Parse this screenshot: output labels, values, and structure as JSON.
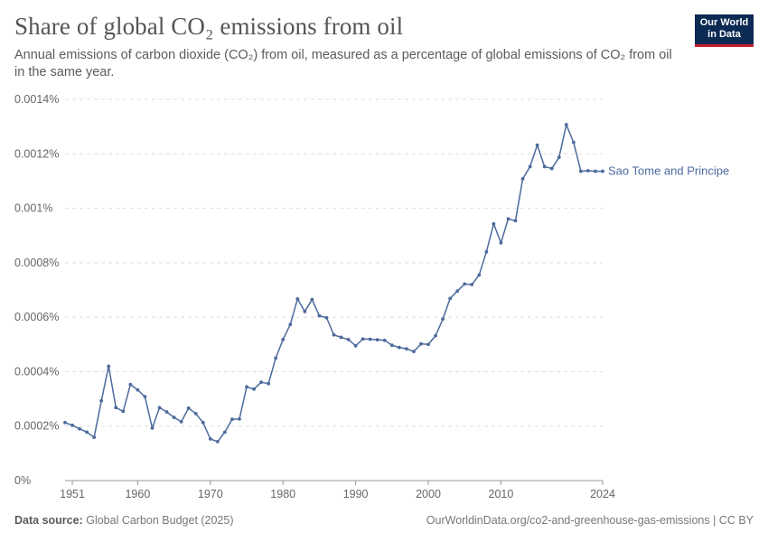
{
  "header": {
    "title": "Share of global CO₂ emissions from oil",
    "subtitle": "Annual emissions of carbon dioxide (CO₂) from oil, measured as a percentage of global emissions of CO₂ from oil in the same year."
  },
  "logo": {
    "line1": "Our World",
    "line2": "in Data"
  },
  "footer": {
    "source_label": "Data source:",
    "source_value": "Global Carbon Budget (2025)",
    "link_text": "OurWorldinData.org/co2-and-greenhouse-gas-emissions | CC BY"
  },
  "colors": {
    "series": "#4c6a9c",
    "grid": "#dddddd",
    "axis": "#999999",
    "logo_bg": "#0b2a54",
    "logo_accent": "#c8202f"
  },
  "chart_data": {
    "type": "line",
    "title": "Share of global CO₂ emissions from oil",
    "xlabel": "",
    "ylabel": "",
    "xlim": [
      1950,
      2024
    ],
    "ylim": [
      0,
      0.0014
    ],
    "x_ticks": [
      1951,
      1960,
      1970,
      1980,
      1990,
      2000,
      2010,
      2024
    ],
    "y_ticks": [
      0,
      0.0002,
      0.0004,
      0.0006,
      0.0008,
      0.001,
      0.0012,
      0.0014
    ],
    "y_tick_labels": [
      "0%",
      "0.0002%",
      "0.0004%",
      "0.0006%",
      "0.0008%",
      "0.001%",
      "0.0012%",
      "0.0014%"
    ],
    "grid": true,
    "legend": "end-of-line label",
    "series": [
      {
        "name": "Sao Tome and Principe",
        "x": [
          1950,
          1951,
          1952,
          1953,
          1954,
          1955,
          1956,
          1957,
          1958,
          1959,
          1960,
          1961,
          1962,
          1963,
          1964,
          1965,
          1966,
          1967,
          1968,
          1969,
          1970,
          1971,
          1972,
          1973,
          1974,
          1975,
          1976,
          1977,
          1978,
          1979,
          1980,
          1981,
          1982,
          1983,
          1984,
          1985,
          1986,
          1987,
          1988,
          1989,
          1990,
          1991,
          1992,
          1993,
          1994,
          1995,
          1996,
          1997,
          1998,
          1999,
          2000,
          2001,
          2002,
          2003,
          2004,
          2005,
          2006,
          2007,
          2008,
          2009,
          2010,
          2011,
          2012,
          2013,
          2014,
          2015,
          2016,
          2017,
          2018,
          2019,
          2020,
          2021,
          2022,
          2023,
          2024
        ],
        "y": [
          0.000213,
          0.000203,
          0.00019,
          0.000178,
          0.000159,
          0.000293,
          0.00042,
          0.000268,
          0.000254,
          0.000353,
          0.000333,
          0.000308,
          0.000193,
          0.000268,
          0.000252,
          0.000232,
          0.000216,
          0.000266,
          0.000246,
          0.000213,
          0.000153,
          0.000143,
          0.000178,
          0.000225,
          0.000226,
          0.000344,
          0.000336,
          0.000361,
          0.000356,
          0.00045,
          0.000518,
          0.000573,
          0.000667,
          0.000621,
          0.000665,
          0.000605,
          0.000598,
          0.000535,
          0.000526,
          0.000518,
          0.000495,
          0.00052,
          0.000519,
          0.000517,
          0.000515,
          0.000497,
          0.000489,
          0.000484,
          0.000474,
          0.000502,
          0.0005,
          0.000532,
          0.000593,
          0.000669,
          0.000696,
          0.000722,
          0.00072,
          0.000755,
          0.00084,
          0.000943,
          0.000873,
          0.000961,
          0.000954,
          0.001108,
          0.001153,
          0.001232,
          0.001153,
          0.001146,
          0.001187,
          0.001307,
          0.001242,
          0.001136,
          0.001138,
          0.001136,
          0.001136
        ]
      }
    ]
  }
}
